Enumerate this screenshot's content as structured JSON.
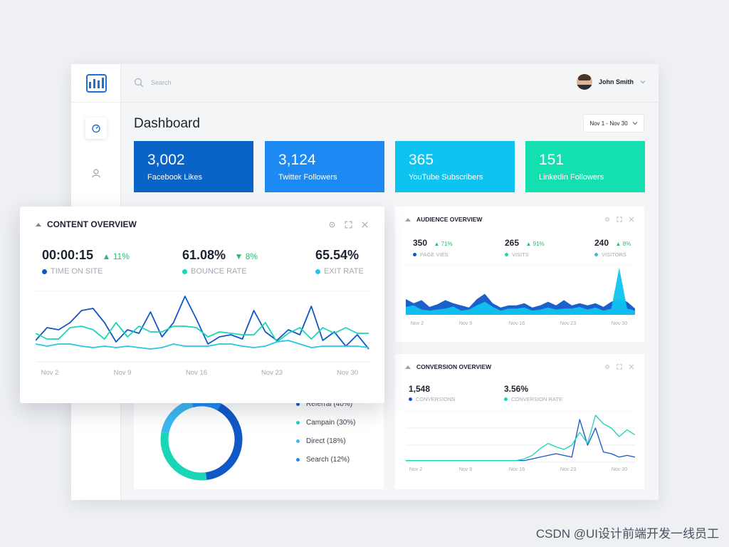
{
  "search": {
    "placeholder": "Search"
  },
  "user": {
    "name": "John Smith"
  },
  "page": {
    "title": "Dashboard",
    "date_range": "Nov 1 - Nov 30"
  },
  "stats": [
    {
      "value": "3,002",
      "label": "Facebook Likes",
      "color": "#0a63c7"
    },
    {
      "value": "3,124",
      "label": "Twitter Followers",
      "color": "#1c8af2"
    },
    {
      "value": "365",
      "label": "YouTube Subscribers",
      "color": "#0fc3f0"
    },
    {
      "value": "151",
      "label": "Linkedin Followers",
      "color": "#14dfb1"
    }
  ],
  "content_overview": {
    "title": "CONTENT OVERVIEW",
    "metrics": [
      {
        "value": "00:00:15",
        "change": "11%",
        "direction": "up",
        "label": "TIME ON SITE",
        "color": "#1058c6"
      },
      {
        "value": "61.08%",
        "change": "8%",
        "direction": "down",
        "label": "BOUNCE RATE",
        "color": "#19d6b7"
      },
      {
        "value": "65.54%",
        "change": "",
        "direction": "",
        "label": "EXIT RATE",
        "color": "#25c6ea"
      }
    ],
    "x_labels": [
      "Nov 2",
      "Nov 9",
      "Nov 16",
      "Nov 23",
      "Nov 30"
    ]
  },
  "audience_overview": {
    "title": "AUDIENCE OVERVIEW",
    "metrics": [
      {
        "value": "350",
        "change": "71%",
        "label": "PAGE VIES",
        "color": "#1058c6"
      },
      {
        "value": "265",
        "change": "91%",
        "label": "VISITS",
        "color": "#19d6b7"
      },
      {
        "value": "240",
        "change": "8%",
        "label": "VISITORS",
        "color": "#25c6ea"
      }
    ],
    "x_labels": [
      "Nov 2",
      "Nov 9",
      "Nov 16",
      "Nov 23",
      "Nov 30"
    ]
  },
  "conversion_overview": {
    "title": "CONVERSION OVERVIEW",
    "metrics": [
      {
        "value": "1,548",
        "label": "CONVERSIONS",
        "color": "#1058c6"
      },
      {
        "value": "3.56%",
        "label": "CONVERSION RATE",
        "color": "#19d6b7"
      }
    ],
    "x_labels": [
      "Nov 2",
      "Nov 9",
      "Nov 16",
      "Nov 23",
      "Nov 30"
    ]
  },
  "traffic_sources": {
    "legend": [
      {
        "label": "Referral (40%)",
        "color": "#1058c6"
      },
      {
        "label": "Campain (30%)",
        "color": "#19d6b7"
      },
      {
        "label": "Direct (18%)",
        "color": "#3db7f0"
      },
      {
        "label": "Search (12%)",
        "color": "#1c8af2"
      }
    ],
    "slices": [
      40,
      30,
      18,
      12
    ]
  },
  "watermark": "CSDN @UI设计前端开发一线员工",
  "icons": {
    "logo": "bar-chart-icon",
    "search": "search-icon",
    "chevron": "chevron-down-icon",
    "dashboard": "dashboard-icon",
    "user": "user-icon",
    "settings": "gear-icon",
    "expand": "expand-icon",
    "close": "close-icon"
  },
  "chart_data": [
    {
      "type": "line",
      "x": [
        "Nov 1",
        "Nov 2",
        "Nov 3",
        "Nov 4",
        "Nov 5",
        "Nov 6",
        "Nov 7",
        "Nov 8",
        "Nov 9",
        "Nov 10",
        "Nov 11",
        "Nov 12",
        "Nov 13",
        "Nov 14",
        "Nov 15",
        "Nov 16",
        "Nov 17",
        "Nov 18",
        "Nov 19",
        "Nov 20",
        "Nov 21",
        "Nov 22",
        "Nov 23",
        "Nov 24",
        "Nov 25",
        "Nov 26",
        "Nov 27",
        "Nov 28",
        "Nov 29",
        "Nov 30"
      ],
      "series": [
        {
          "name": "TIME ON SITE",
          "values": [
            30,
            48,
            45,
            55,
            72,
            75,
            55,
            28,
            45,
            40,
            70,
            35,
            55,
            92,
            60,
            25,
            35,
            38,
            32,
            72,
            42,
            30,
            45,
            38,
            78,
            30,
            42,
            22,
            38,
            18
          ]
        },
        {
          "name": "BOUNCE RATE",
          "values": [
            40,
            32,
            32,
            48,
            50,
            45,
            32,
            55,
            35,
            50,
            42,
            42,
            50,
            50,
            48,
            35,
            42,
            40,
            38,
            38,
            55,
            28,
            40,
            48,
            32,
            48,
            40,
            48,
            40,
            40
          ]
        },
        {
          "name": "EXIT RATE",
          "values": [
            25,
            22,
            25,
            25,
            22,
            20,
            22,
            20,
            22,
            20,
            18,
            20,
            25,
            22,
            22,
            22,
            25,
            25,
            22,
            20,
            22,
            28,
            30,
            25,
            20,
            22,
            22,
            22,
            22,
            20
          ]
        }
      ]
    },
    {
      "type": "area",
      "x": [
        "Nov 1",
        "Nov 2",
        "Nov 3",
        "Nov 4",
        "Nov 5",
        "Nov 6",
        "Nov 7",
        "Nov 8",
        "Nov 9",
        "Nov 10",
        "Nov 11",
        "Nov 12",
        "Nov 13",
        "Nov 14",
        "Nov 15",
        "Nov 16",
        "Nov 17",
        "Nov 18",
        "Nov 19",
        "Nov 20",
        "Nov 21",
        "Nov 22",
        "Nov 23",
        "Nov 24",
        "Nov 25",
        "Nov 26",
        "Nov 27",
        "Nov 28",
        "Nov 29",
        "Nov 30"
      ],
      "series": [
        {
          "name": "PAGE VIES",
          "values": [
            30,
            22,
            28,
            15,
            20,
            28,
            22,
            18,
            14,
            30,
            40,
            22,
            14,
            18,
            18,
            22,
            14,
            18,
            25,
            18,
            28,
            18,
            22,
            18,
            22,
            15,
            25,
            30,
            25,
            12
          ]
        },
        {
          "name": "VISITS",
          "values": [
            15,
            18,
            10,
            8,
            10,
            12,
            16,
            8,
            10,
            18,
            25,
            15,
            8,
            12,
            12,
            14,
            8,
            10,
            14,
            10,
            12,
            12,
            15,
            10,
            14,
            8,
            12,
            90,
            12,
            8
          ]
        }
      ]
    },
    {
      "type": "line",
      "x": [
        "Nov 1",
        "Nov 2",
        "Nov 3",
        "Nov 4",
        "Nov 5",
        "Nov 6",
        "Nov 7",
        "Nov 8",
        "Nov 9",
        "Nov 10",
        "Nov 11",
        "Nov 12",
        "Nov 13",
        "Nov 14",
        "Nov 15",
        "Nov 16",
        "Nov 17",
        "Nov 18",
        "Nov 19",
        "Nov 20",
        "Nov 21",
        "Nov 22",
        "Nov 23",
        "Nov 24",
        "Nov 25",
        "Nov 26",
        "Nov 27",
        "Nov 28",
        "Nov 29",
        "Nov 30"
      ],
      "series": [
        {
          "name": "CONVERSIONS",
          "values": [
            2,
            2,
            2,
            2,
            2,
            2,
            2,
            2,
            2,
            2,
            2,
            2,
            2,
            2,
            2,
            2,
            4,
            6,
            8,
            10,
            8,
            6,
            50,
            20,
            40,
            12,
            10,
            6,
            8,
            6
          ]
        },
        {
          "name": "CONVERSION RATE",
          "values": [
            2,
            2,
            2,
            2,
            2,
            2,
            2,
            2,
            2,
            2,
            2,
            2,
            2,
            2,
            2,
            4,
            8,
            16,
            22,
            18,
            15,
            20,
            35,
            22,
            55,
            45,
            40,
            30,
            38,
            32
          ]
        }
      ]
    },
    {
      "type": "pie",
      "categories": [
        "Referral (40%)",
        "Campain (30%)",
        "Direct (18%)",
        "Search (12%)"
      ],
      "values": [
        40,
        30,
        18,
        12
      ]
    }
  ]
}
